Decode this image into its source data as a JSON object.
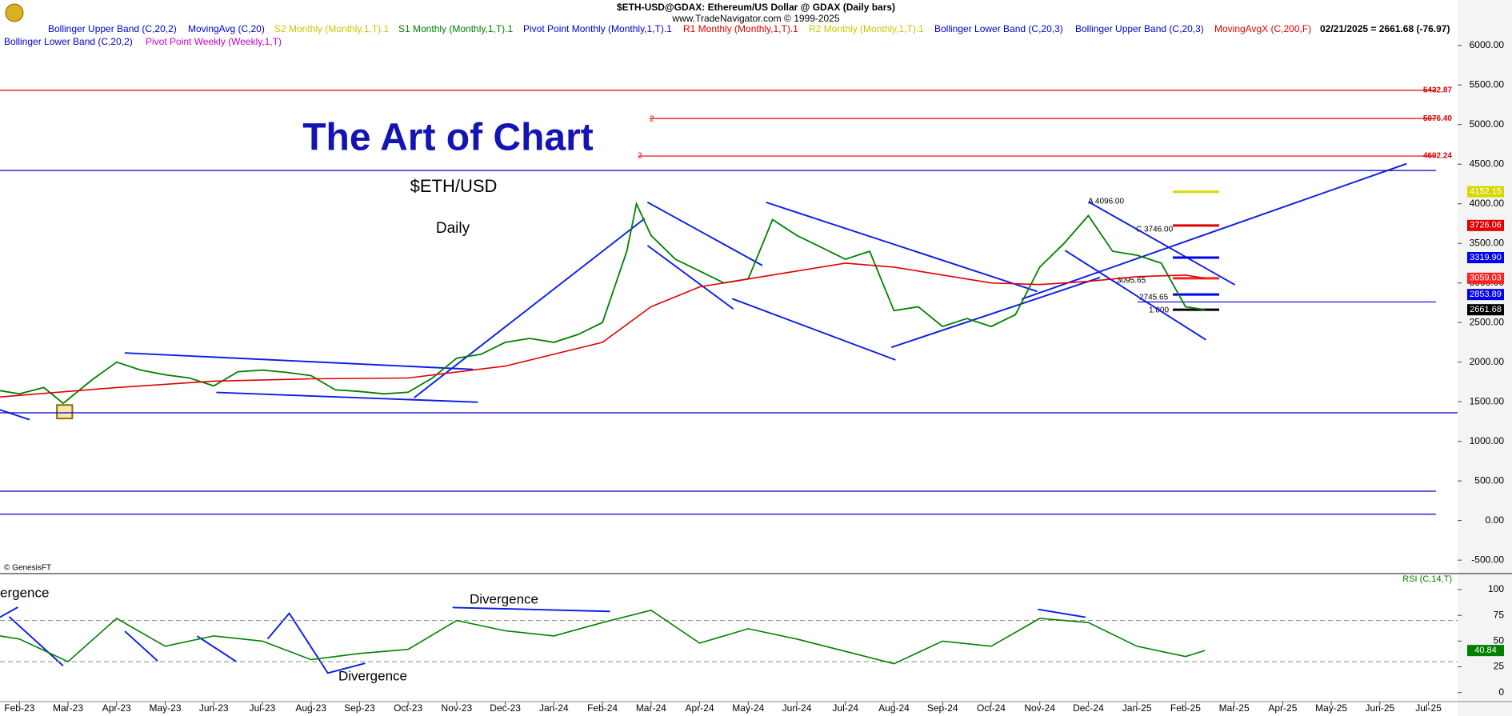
{
  "header": {
    "title": "$ETH-USD@GDAX:  Ethereum/US Dollar @ GDAX  (Daily bars)",
    "subtitle": "www.TradeNavigator.com © 1999-2025"
  },
  "legend": [
    {
      "text": "Bollinger Upper Band (C,20,2)",
      "color": "#0000cc"
    },
    {
      "text": "MovingAvg (C,20)",
      "color": "#0000cc"
    },
    {
      "text": "S2 Monthly (Monthly,1,T).1",
      "color": "#c8c800"
    },
    {
      "text": "S1 Monthly (Monthly,1,T).1",
      "color": "#008000"
    },
    {
      "text": "Pivot Point Monthly (Monthly,1,T).1",
      "color": "#0000cc"
    },
    {
      "text": "R1 Monthly (Monthly,1,T).1",
      "color": "#e00000"
    },
    {
      "text": "R2 Monthly (Monthly,1,T).1",
      "color": "#c8c800"
    },
    {
      "text": "Bollinger Lower Band (C,20,3)",
      "color": "#0000cc"
    },
    {
      "text": "Bollinger Upper Band (C,20,3)",
      "color": "#0000cc"
    },
    {
      "text": "MovingAvgX (C,200,F)",
      "color": "#e00000"
    },
    {
      "text": "02/21/2025 = 2661.68 (-76.97)",
      "color": "#000000"
    },
    {
      "text": "Bollinger Lower Band (C,20,2)",
      "color": "#0000cc"
    },
    {
      "text": "Pivot Point Weekly (Weekly,1,T)",
      "color": "#cc00cc"
    }
  ],
  "annotations": {
    "headline": "The Art of Chart",
    "symbol": "$ETH/USD",
    "period": "Daily",
    "divergence_top": "Divergence",
    "divergence_bottom": "Divergence",
    "divergence_left": "ergence",
    "copyright": "© GenesisFT",
    "fib": [
      "A 4096.00",
      "C 3746.00",
      "3095.65",
      "2745.65",
      "1.000"
    ],
    "r2_marks": [
      "2",
      "2"
    ]
  },
  "chart_data": [
    {
      "type": "line",
      "xlim": [
        -0.4,
        29.6
      ],
      "xticks": [
        {
          "value": 0,
          "label": "Feb-23"
        },
        {
          "value": 1,
          "label": "Mar-23"
        },
        {
          "value": 2,
          "label": "Apr-23"
        },
        {
          "value": 3,
          "label": "May-23"
        },
        {
          "value": 4,
          "label": "Jun-23"
        },
        {
          "value": 5,
          "label": "Jul-23"
        },
        {
          "value": 6,
          "label": "Aug-23"
        },
        {
          "value": 7,
          "label": "Sep-23"
        },
        {
          "value": 8,
          "label": "Oct-23"
        },
        {
          "value": 9,
          "label": "Nov-23"
        },
        {
          "value": 10,
          "label": "Dec-23"
        },
        {
          "value": 11,
          "label": "Jan-24"
        },
        {
          "value": 12,
          "label": "Feb-24"
        },
        {
          "value": 13,
          "label": "Mar-24"
        },
        {
          "value": 14,
          "label": "Apr-24"
        },
        {
          "value": 15,
          "label": "May-24"
        },
        {
          "value": 16,
          "label": "Jun-24"
        },
        {
          "value": 17,
          "label": "Jul-24"
        },
        {
          "value": 18,
          "label": "Aug-24"
        },
        {
          "value": 19,
          "label": "Sep-24"
        },
        {
          "value": 20,
          "label": "Oct-24"
        },
        {
          "value": 21,
          "label": "Nov-24"
        },
        {
          "value": 22,
          "label": "Dec-24"
        },
        {
          "value": 23,
          "label": "Jan-25"
        },
        {
          "value": 24,
          "label": "Feb-25"
        },
        {
          "value": 25,
          "label": "Mar-25"
        },
        {
          "value": 26,
          "label": "Apr-25"
        },
        {
          "value": 27,
          "label": "May-25"
        },
        {
          "value": 28,
          "label": "Jun-25"
        },
        {
          "value": 29,
          "label": "Jul-25"
        }
      ],
      "ylim": [
        -650,
        6280
      ],
      "yticks": [
        {
          "value": 6000,
          "label": "6000.00"
        },
        {
          "value": 5500,
          "label": "5500.00"
        },
        {
          "value": 5000,
          "label": "5000.00"
        },
        {
          "value": 4500,
          "label": "4500.00"
        },
        {
          "value": 4000,
          "label": "4000.00"
        },
        {
          "value": 3500,
          "label": "3500.00"
        },
        {
          "value": 3000,
          "label": "3000.00"
        },
        {
          "value": 2500,
          "label": "2500.00"
        },
        {
          "value": 2000,
          "label": "2000.00"
        },
        {
          "value": 1500,
          "label": "1500.00"
        },
        {
          "value": 1000,
          "label": "1000.00"
        },
        {
          "value": 500,
          "label": "500.00"
        },
        {
          "value": 0,
          "label": "0.00"
        },
        {
          "value": -500,
          "label": "-500.00"
        }
      ],
      "series": [
        {
          "color": "#008000",
          "x": [
            -0.4,
            0,
            0.5,
            0.9,
            1.5,
            2,
            2.5,
            3,
            3.5,
            4,
            4.5,
            5,
            5.5,
            6,
            6.5,
            7,
            7.5,
            8,
            8.5,
            9,
            9.5,
            10,
            10.5,
            11,
            11.5,
            12,
            12.5,
            12.7,
            13,
            13.5,
            14,
            14.5,
            15,
            15.5,
            16,
            16.5,
            17,
            17.5,
            18,
            18.5,
            19,
            19.5,
            20,
            20.5,
            21,
            21.5,
            22,
            22.5,
            23,
            23.5,
            24,
            24.4
          ],
          "values": [
            1640,
            1600,
            1680,
            1480,
            1780,
            2000,
            1900,
            1840,
            1800,
            1700,
            1880,
            1900,
            1870,
            1830,
            1650,
            1630,
            1600,
            1620,
            1800,
            2050,
            2100,
            2250,
            2300,
            2250,
            2350,
            2500,
            3400,
            4000,
            3600,
            3300,
            3150,
            3000,
            3050,
            3800,
            3600,
            3450,
            3300,
            3400,
            2650,
            2700,
            2450,
            2550,
            2450,
            2600,
            3200,
            3500,
            3850,
            3400,
            3350,
            3250,
            2700,
            2661.68
          ]
        },
        {
          "name": "MovingAvgX (C,200,F)",
          "color": "#e00000",
          "x": [
            -0.4,
            2,
            4,
            6,
            8,
            10,
            12,
            13,
            14,
            15,
            16,
            17,
            18,
            19,
            20,
            21,
            22,
            23,
            24,
            24.4
          ],
          "values": [
            1560,
            1680,
            1760,
            1790,
            1800,
            1950,
            2250,
            2700,
            2950,
            3050,
            3150,
            3250,
            3200,
            3100,
            3000,
            2980,
            3020,
            3080,
            3100,
            3059.03
          ]
        }
      ],
      "levels": [
        {
          "value": 5432.87,
          "label": "5432.87",
          "color": "#e00000"
        },
        {
          "value": 5076.4,
          "label": "5076.40",
          "color": "#e00000"
        },
        {
          "value": 4602.24,
          "label": "4602.24",
          "color": "#e00000"
        }
      ],
      "hlines": [
        {
          "value": 4420,
          "color": "#0000cc"
        },
        {
          "value": 1360,
          "color": "#0000cc"
        },
        {
          "value": 370,
          "color": "#0000cc"
        },
        {
          "value": 80,
          "color": "#0000cc"
        },
        {
          "value": 2760,
          "color": "#0000cc"
        }
      ],
      "price_markers": [
        {
          "value": 4152.15,
          "label": "4152.15",
          "color": "#d8d800",
          "text": "#ffffff"
        },
        {
          "value": 3726.06,
          "label": "3726.06",
          "color": "#e00000",
          "text": "#ffffff"
        },
        {
          "value": 3319.9,
          "label": "3319.90",
          "color": "#0000ee",
          "text": "#ffffff"
        },
        {
          "value": 3059.03,
          "label": "3059.03",
          "color": "#ff2020",
          "text": "#ffffff"
        },
        {
          "value": 2853.89,
          "label": "2853.89",
          "color": "#0000ee",
          "text": "#ffffff"
        },
        {
          "value": 2661.68,
          "label": "2661.68",
          "color": "#000000",
          "text": "#ffffff"
        }
      ]
    },
    {
      "type": "line",
      "title": "RSI (C,14,T)",
      "xlim": [
        -0.4,
        29.6
      ],
      "ylim": [
        -8,
        114
      ],
      "yticks": [
        100,
        75,
        50,
        25,
        0
      ],
      "hlines": [
        70,
        30
      ],
      "series": [
        {
          "color": "#008000",
          "x": [
            -0.4,
            0,
            1,
            2,
            3,
            4,
            5,
            6,
            7,
            8,
            9,
            10,
            11,
            12,
            13,
            14,
            15,
            16,
            17,
            18,
            19,
            20,
            21,
            22,
            23,
            24,
            24.4
          ],
          "values": [
            55,
            52,
            30,
            72,
            45,
            55,
            50,
            32,
            38,
            42,
            70,
            60,
            55,
            68,
            80,
            48,
            62,
            52,
            40,
            28,
            50,
            45,
            72,
            68,
            45,
            35,
            40.84
          ]
        }
      ],
      "last_value": {
        "value": 40.84,
        "label": "40.84"
      }
    }
  ]
}
